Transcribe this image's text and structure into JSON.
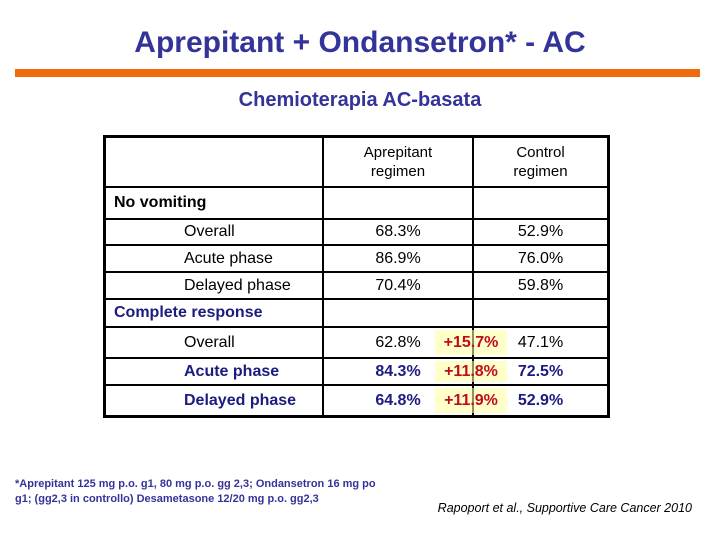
{
  "title": "Aprepitant + Ondansetron* - AC",
  "subtitle": "Chemioterapia AC-basata",
  "colors": {
    "title_navy": "#333399",
    "table_navy": "#1B1B80",
    "rule_orange": "#EE6B0C",
    "highlight_yellow": "#FFFFC9",
    "delta_red": "#C00B1E",
    "border_black": "#000000",
    "grid_grey": "#90905F"
  },
  "table": {
    "columns": {
      "aprepitant": {
        "line1": "Aprepitant",
        "line2": "regimen"
      },
      "control": {
        "line1": "Control",
        "line2": "regimen"
      }
    },
    "rows": [
      {
        "label": "No vomiting"
      },
      {
        "label": "Overall",
        "aprepitant": "68.3%",
        "control": "52.9%"
      },
      {
        "label": "Acute phase",
        "aprepitant": "86.9%",
        "control": "76.0%"
      },
      {
        "label": "Delayed phase",
        "aprepitant": "70.4%",
        "control": "59.8%"
      },
      {
        "label": "Complete response"
      },
      {
        "label": "Overall",
        "aprepitant": "62.8%",
        "delta": "+15.7%",
        "control": "47.1%"
      },
      {
        "label": "Acute phase",
        "aprepitant": "84.3%",
        "delta": "+11.8%",
        "control": "72.5%"
      },
      {
        "label": "Delayed phase",
        "aprepitant": "64.8%",
        "delta": "+11.9%",
        "control": "52.9%"
      }
    ]
  },
  "footnote": "*Aprepitant 125 mg p.o. g1, 80 mg p.o. gg 2,3; Ondansetron 16 mg po\ng1; (gg2,3 in controllo) Desametasone 12/20 mg p.o. gg2,3",
  "citation": "Rapoport et al., Supportive Care Cancer 2010"
}
